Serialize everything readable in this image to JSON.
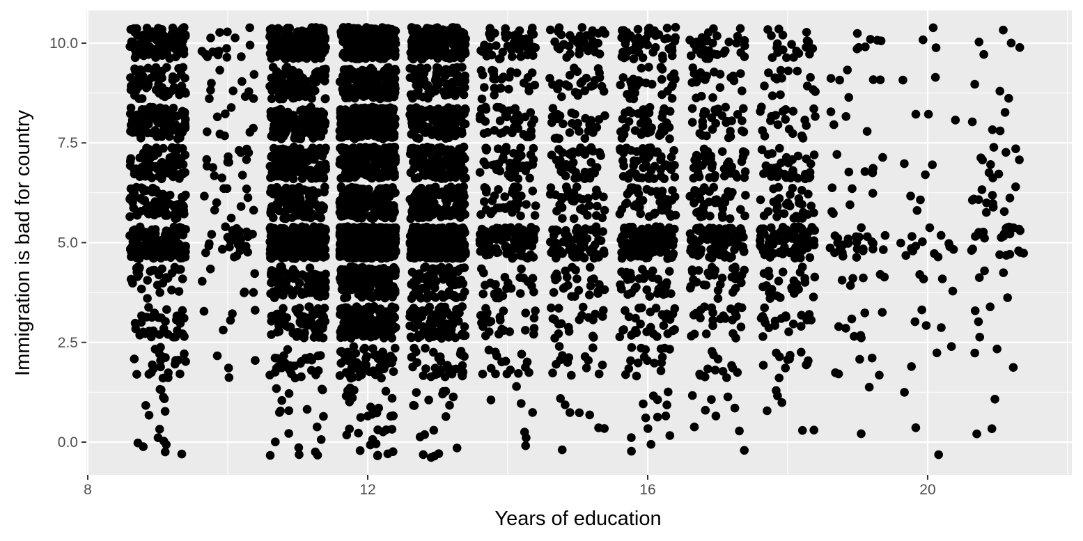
{
  "chart_data": {
    "type": "scatter",
    "title": "",
    "xlabel": "Years of education",
    "ylabel": "Immigration is bad for country",
    "xlim": [
      7.98,
      22.06
    ],
    "ylim": [
      -0.82,
      10.82
    ],
    "x_ticks": [
      8,
      12,
      16,
      20
    ],
    "x_tick_labels": [
      "8",
      "12",
      "16",
      "20"
    ],
    "y_ticks": [
      0,
      2.5,
      5,
      7.5,
      10
    ],
    "y_tick_labels": [
      "0.0",
      "2.5",
      "5.0",
      "7.5",
      "10.0"
    ],
    "grid": true,
    "jitter": {
      "x": 0.4,
      "y": 0.4
    },
    "education_levels": [
      9,
      10,
      11,
      12,
      13,
      14,
      15,
      16,
      17,
      18,
      19,
      20,
      21
    ],
    "response_levels": [
      0,
      1,
      2,
      3,
      4,
      5,
      6,
      7,
      8,
      9,
      10
    ],
    "counts": [
      [
        8,
        7,
        22,
        32,
        30,
        130,
        70,
        80,
        90,
        60,
        95
      ],
      [
        0,
        0,
        4,
        5,
        6,
        28,
        10,
        14,
        8,
        10,
        16
      ],
      [
        9,
        10,
        30,
        70,
        80,
        300,
        110,
        140,
        120,
        90,
        190
      ],
      [
        15,
        18,
        60,
        160,
        150,
        500,
        180,
        220,
        260,
        150,
        260
      ],
      [
        8,
        10,
        35,
        90,
        90,
        300,
        110,
        140,
        120,
        80,
        170
      ],
      [
        3,
        4,
        15,
        25,
        25,
        90,
        40,
        45,
        40,
        25,
        55
      ],
      [
        3,
        5,
        14,
        20,
        25,
        75,
        35,
        40,
        30,
        25,
        40
      ],
      [
        5,
        8,
        17,
        30,
        35,
        120,
        45,
        55,
        40,
        30,
        50
      ],
      [
        3,
        6,
        14,
        25,
        30,
        95,
        40,
        40,
        30,
        20,
        35
      ],
      [
        2,
        4,
        12,
        20,
        25,
        85,
        30,
        35,
        20,
        15,
        20
      ],
      [
        1,
        1,
        5,
        8,
        6,
        25,
        6,
        6,
        4,
        6,
        7
      ],
      [
        2,
        1,
        3,
        4,
        4,
        14,
        3,
        3,
        3,
        2,
        3
      ],
      [
        2,
        1,
        3,
        4,
        4,
        25,
        12,
        10,
        4,
        3,
        5
      ]
    ],
    "point_color": "#000000",
    "panel_background": "#ebebeb",
    "grid_color": "#ffffff"
  }
}
